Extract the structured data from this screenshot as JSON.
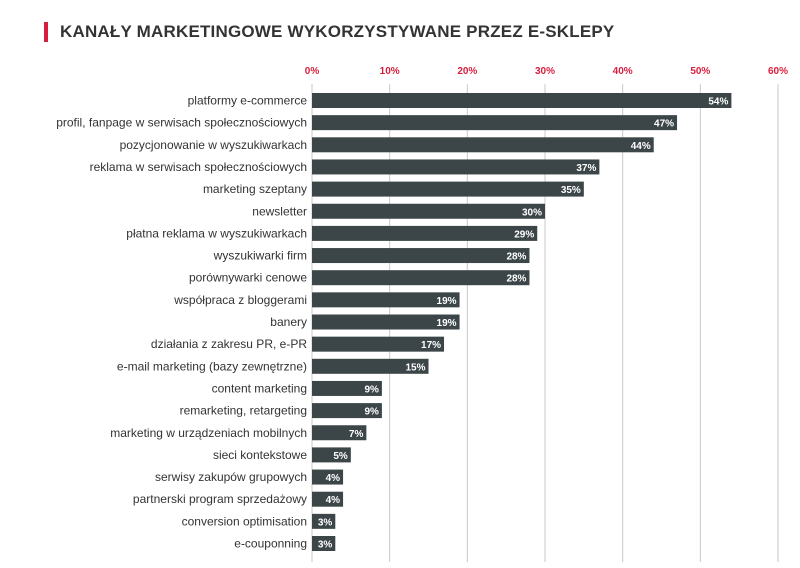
{
  "title": "KANAŁY MARKETINGOWE WYKORZYSTYWANE PRZEZ E-SKLEPY",
  "colors": {
    "bar": "#3c4648",
    "accent": "#d81e3e",
    "grid": "#c9c9c9",
    "text": "#333333"
  },
  "chart_data": {
    "type": "bar",
    "orientation": "horizontal",
    "title": "KANAŁY MARKETINGOWE WYKORZYSTYWANE PRZEZ E-SKLEPY",
    "xlim": [
      0,
      60
    ],
    "x_ticks": [
      "0%",
      "10%",
      "20%",
      "30%",
      "40%",
      "50%",
      "60%"
    ],
    "x_tick_values": [
      0,
      10,
      20,
      30,
      40,
      50,
      60
    ],
    "x_axis_position": "top",
    "grid": true,
    "categories": [
      "platformy e-commerce",
      "profil, fanpage w serwisach społecznościowych",
      "pozycjonowanie w wyszukiwarkach",
      "reklama w serwisach społecznościowych",
      "marketing szeptany",
      "newsletter",
      "płatna reklama w wyszukiwarkach",
      "wyszukiwarki firm",
      "porównywarki cenowe",
      "współpraca z bloggerami",
      "banery",
      "działania z zakresu PR, e-PR",
      "e-mail marketing (bazy zewnętrzne)",
      "content marketing",
      "remarketing, retargeting",
      "marketing w urządzeniach mobilnych",
      "sieci kontekstowe",
      "serwisy zakupów grupowych",
      "partnerski program sprzedażowy",
      "conversion optimisation",
      "e-couponning"
    ],
    "values": [
      54,
      47,
      44,
      37,
      35,
      30,
      29,
      28,
      28,
      19,
      19,
      17,
      15,
      9,
      9,
      7,
      5,
      4,
      4,
      3,
      3
    ],
    "value_labels": [
      "54%",
      "47%",
      "44%",
      "37%",
      "35%",
      "30%",
      "29%",
      "28%",
      "28%",
      "19%",
      "19%",
      "17%",
      "15%",
      "9%",
      "9%",
      "7%",
      "5%",
      "4%",
      "4%",
      "3%",
      "3%"
    ]
  }
}
